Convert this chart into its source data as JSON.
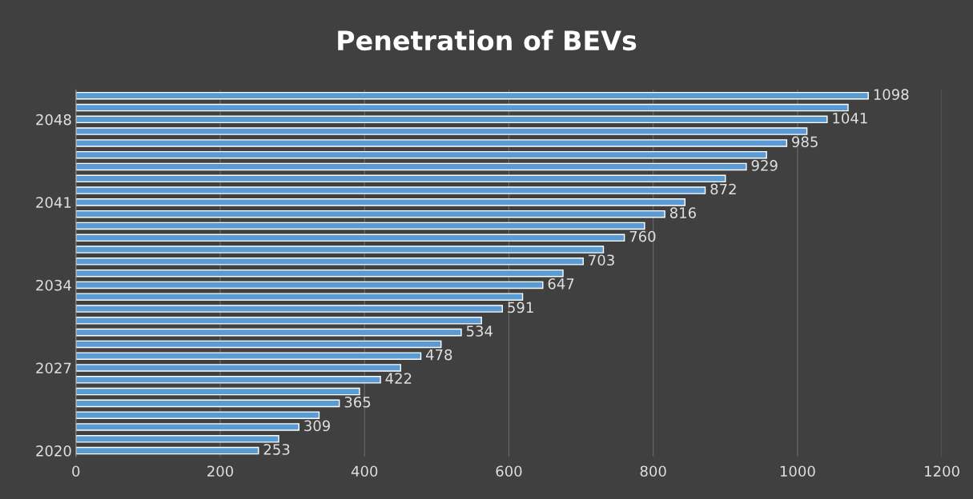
{
  "chart_data": {
    "type": "bar",
    "orientation": "horizontal",
    "title": "Penetration of BEVs",
    "categories": [
      null,
      null,
      "2048",
      null,
      null,
      null,
      null,
      null,
      null,
      "2041",
      null,
      null,
      null,
      null,
      null,
      null,
      "2034",
      null,
      null,
      null,
      null,
      null,
      null,
      "2027",
      null,
      null,
      null,
      null,
      null,
      null,
      "2020"
    ],
    "values": [
      1098,
      1070,
      1041,
      1013,
      985,
      957,
      929,
      900,
      872,
      844,
      816,
      788,
      760,
      731,
      703,
      675,
      647,
      619,
      591,
      562,
      534,
      506,
      478,
      450,
      422,
      393,
      365,
      337,
      309,
      281,
      253
    ],
    "value_labels": [
      "1098",
      null,
      "1041",
      null,
      "985",
      null,
      "929",
      null,
      "872",
      null,
      "816",
      null,
      "760",
      null,
      "703",
      null,
      "647",
      null,
      "591",
      null,
      "534",
      null,
      "478",
      null,
      "422",
      null,
      "365",
      null,
      "309",
      null,
      "253"
    ],
    "color": "#5b9bd5",
    "xlim": [
      0,
      1200
    ],
    "xticks": [
      0,
      200,
      400,
      600,
      800,
      1000,
      1200
    ],
    "grid": "x",
    "legend": false
  }
}
